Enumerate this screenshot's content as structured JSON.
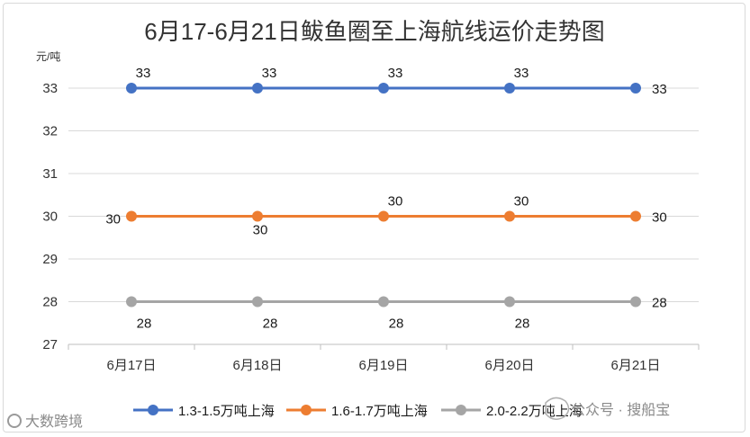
{
  "chart_data": {
    "type": "line",
    "title": "6月17-6月21日鲅鱼圈至上海航线运价走势图",
    "ylabel": "元/吨",
    "xlabel": "",
    "categories": [
      "6月17日",
      "6月18日",
      "6月19日",
      "6月20日",
      "6月21日"
    ],
    "ylim": [
      27,
      33
    ],
    "yticks": [
      27,
      28,
      29,
      30,
      31,
      32,
      33
    ],
    "grid": true,
    "legend_position": "bottom",
    "series": [
      {
        "name": "1.3-1.5万吨上海",
        "color": "#4472C4",
        "values": [
          33,
          33,
          33,
          33,
          33
        ],
        "data_labels": [
          "33",
          "33",
          "33",
          "33",
          "33"
        ],
        "label_side": [
          "above",
          "above",
          "above",
          "above",
          "right"
        ]
      },
      {
        "name": "1.6-1.7万吨上海",
        "color": "#ED7D31",
        "values": [
          30,
          30,
          30,
          30,
          30
        ],
        "data_labels": [
          "30",
          "30",
          "30",
          "30",
          "30"
        ],
        "label_side": [
          "left",
          "below",
          "above",
          "above",
          "right"
        ]
      },
      {
        "name": "2.0-2.2万吨上海",
        "color": "#A5A5A5",
        "values": [
          28,
          28,
          28,
          28,
          28
        ],
        "data_labels": [
          "28",
          "28",
          "28",
          "28",
          "28"
        ],
        "label_side": [
          "below",
          "below",
          "below",
          "below",
          "right"
        ]
      }
    ]
  },
  "watermarks": {
    "bottom_left": "大数跨境",
    "bottom_right": "公众号 · 搜船宝"
  }
}
